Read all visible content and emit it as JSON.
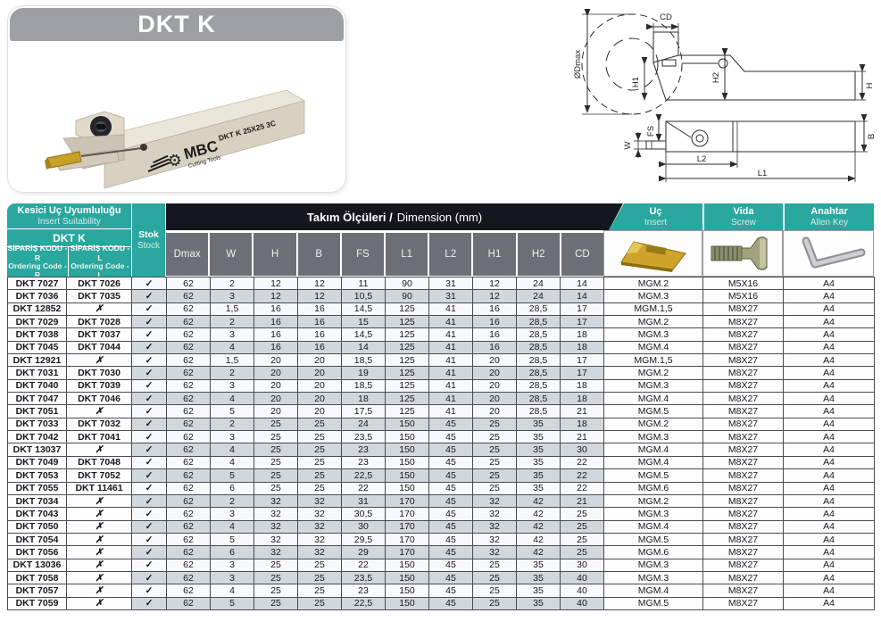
{
  "product_card": {
    "title": "DKT K",
    "brand": "MBC",
    "brand_sub": "Cutting Tools",
    "tool_marking": "DKT K 25X25 3C"
  },
  "diagram": {
    "labels": {
      "dmax": "ØDmax",
      "cd": "CD",
      "h1": "H1",
      "h2": "H2",
      "h": "H",
      "fs": "FS",
      "w": "W",
      "l2": "L2",
      "l1": "L1",
      "b": "B"
    }
  },
  "colors": {
    "teal": "#2aa79e",
    "dark_bar": "#16161e",
    "column_gray": "#6c7076",
    "row_alt": "#d2d7db",
    "banner_gray": "#9da0a3",
    "insert_gold": "#c7a028"
  },
  "table": {
    "suitability_tr": "Kesici Uç Uyumluluğu",
    "suitability_en": "Insert Suitability",
    "series": "DKT K",
    "code_r_tr": "SİPARİŞ KODU - R",
    "code_r_en": "Ordering Code - R",
    "code_l_tr": "SİPARİŞ KODU - L",
    "code_l_en": "Ordering Code - L",
    "stock_tr": "Stok",
    "stock_en": "Stock",
    "dim_title_bold": "Takım Ölçüleri /",
    "dim_title_reg": "Dimension (mm)",
    "dim_columns": [
      "Dmax",
      "W",
      "H",
      "B",
      "FS",
      "L1",
      "L2",
      "H1",
      "H2",
      "CD"
    ],
    "tool_columns": [
      {
        "tr": "Uç",
        "en": "Insert"
      },
      {
        "tr": "Vida",
        "en": "Screw"
      },
      {
        "tr": "Anahtar",
        "en": "Allen Key"
      }
    ],
    "check_symbol": "✓",
    "cross_symbol": "✗",
    "rows": [
      {
        "code_r": "DKT 7027",
        "code_l": "DKT 7026",
        "stock": "✓",
        "dims": [
          "62",
          "2",
          "12",
          "12",
          "11",
          "90",
          "31",
          "12",
          "24",
          "14"
        ],
        "insert": "MGM.2",
        "screw": "M5X16",
        "key": "A4"
      },
      {
        "code_r": "DKT 7036",
        "code_l": "DKT 7035",
        "stock": "✓",
        "dims": [
          "62",
          "3",
          "12",
          "12",
          "10,5",
          "90",
          "31",
          "12",
          "24",
          "14"
        ],
        "insert": "MGM.3",
        "screw": "M5X16",
        "key": "A4"
      },
      {
        "code_r": "DKT 12852",
        "code_l": "✗",
        "stock": "✓",
        "dims": [
          "62",
          "1,5",
          "16",
          "16",
          "14,5",
          "125",
          "41",
          "16",
          "28,5",
          "17"
        ],
        "insert": "MGM.1,5",
        "screw": "M8X27",
        "key": "A4"
      },
      {
        "code_r": "DKT 7029",
        "code_l": "DKT 7028",
        "stock": "✓",
        "dims": [
          "62",
          "2",
          "16",
          "16",
          "15",
          "125",
          "41",
          "16",
          "28,5",
          "17"
        ],
        "insert": "MGM.2",
        "screw": "M8X27",
        "key": "A4"
      },
      {
        "code_r": "DKT 7038",
        "code_l": "DKT 7037",
        "stock": "✓",
        "dims": [
          "62",
          "3",
          "16",
          "16",
          "14,5",
          "125",
          "41",
          "16",
          "28,5",
          "18"
        ],
        "insert": "MGM.3",
        "screw": "M8X27",
        "key": "A4"
      },
      {
        "code_r": "DKT 7045",
        "code_l": "DKT 7044",
        "stock": "✓",
        "dims": [
          "62",
          "4",
          "16",
          "16",
          "14",
          "125",
          "41",
          "16",
          "28,5",
          "18"
        ],
        "insert": "MGM.4",
        "screw": "M8X27",
        "key": "A4"
      },
      {
        "code_r": "DKT 12921",
        "code_l": "✗",
        "stock": "✓",
        "dims": [
          "62",
          "1,5",
          "20",
          "20",
          "18,5",
          "125",
          "41",
          "20",
          "28,5",
          "17"
        ],
        "insert": "MGM.1,5",
        "screw": "M8X27",
        "key": "A4"
      },
      {
        "code_r": "DKT 7031",
        "code_l": "DKT 7030",
        "stock": "✓",
        "dims": [
          "62",
          "2",
          "20",
          "20",
          "19",
          "125",
          "41",
          "20",
          "28,5",
          "17"
        ],
        "insert": "MGM.2",
        "screw": "M8X27",
        "key": "A4"
      },
      {
        "code_r": "DKT 7040",
        "code_l": "DKT 7039",
        "stock": "✓",
        "dims": [
          "62",
          "3",
          "20",
          "20",
          "18,5",
          "125",
          "41",
          "20",
          "28,5",
          "18"
        ],
        "insert": "MGM.3",
        "screw": "M8X27",
        "key": "A4"
      },
      {
        "code_r": "DKT 7047",
        "code_l": "DKT 7046",
        "stock": "✓",
        "dims": [
          "62",
          "4",
          "20",
          "20",
          "18",
          "125",
          "41",
          "20",
          "28,5",
          "18"
        ],
        "insert": "MGM.4",
        "screw": "M8X27",
        "key": "A4"
      },
      {
        "code_r": "DKT 7051",
        "code_l": "✗",
        "stock": "✓",
        "dims": [
          "62",
          "5",
          "20",
          "20",
          "17,5",
          "125",
          "41",
          "20",
          "28,5",
          "21"
        ],
        "insert": "MGM.5",
        "screw": "M8X27",
        "key": "A4"
      },
      {
        "code_r": "DKT 7033",
        "code_l": "DKT 7032",
        "stock": "✓",
        "dims": [
          "62",
          "2",
          "25",
          "25",
          "24",
          "150",
          "45",
          "25",
          "35",
          "18"
        ],
        "insert": "MGM.2",
        "screw": "M8X27",
        "key": "A4"
      },
      {
        "code_r": "DKT 7042",
        "code_l": "DKT 7041",
        "stock": "✓",
        "dims": [
          "62",
          "3",
          "25",
          "25",
          "23,5",
          "150",
          "45",
          "25",
          "35",
          "21"
        ],
        "insert": "MGM.3",
        "screw": "M8X27",
        "key": "A4"
      },
      {
        "code_r": "DKT 13037",
        "code_l": "✗",
        "stock": "✓",
        "dims": [
          "62",
          "4",
          "25",
          "25",
          "23",
          "150",
          "45",
          "25",
          "35",
          "30"
        ],
        "insert": "MGM.4",
        "screw": "M8X27",
        "key": "A4"
      },
      {
        "code_r": "DKT 7049",
        "code_l": "DKT 7048",
        "stock": "✓",
        "dims": [
          "62",
          "4",
          "25",
          "25",
          "23",
          "150",
          "45",
          "25",
          "35",
          "22"
        ],
        "insert": "MGM.4",
        "screw": "M8X27",
        "key": "A4"
      },
      {
        "code_r": "DKT 7053",
        "code_l": "DKT 7052",
        "stock": "✓",
        "dims": [
          "62",
          "5",
          "25",
          "25",
          "22,5",
          "150",
          "45",
          "25",
          "35",
          "22"
        ],
        "insert": "MGM.5",
        "screw": "M8X27",
        "key": "A4"
      },
      {
        "code_r": "DKT 7055",
        "code_l": "DKT 11461",
        "stock": "✓",
        "dims": [
          "62",
          "6",
          "25",
          "25",
          "22",
          "150",
          "45",
          "25",
          "35",
          "22"
        ],
        "insert": "MGM.6",
        "screw": "M8X27",
        "key": "A4"
      },
      {
        "code_r": "DKT 7034",
        "code_l": "✗",
        "stock": "✓",
        "dims": [
          "62",
          "2",
          "32",
          "32",
          "31",
          "170",
          "45",
          "32",
          "42",
          "21"
        ],
        "insert": "MGM.2",
        "screw": "M8X27",
        "key": "A4"
      },
      {
        "code_r": "DKT 7043",
        "code_l": "✗",
        "stock": "✓",
        "dims": [
          "62",
          "3",
          "32",
          "32",
          "30,5",
          "170",
          "45",
          "32",
          "42",
          "25"
        ],
        "insert": "MGM.3",
        "screw": "M8X27",
        "key": "A4"
      },
      {
        "code_r": "DKT 7050",
        "code_l": "✗",
        "stock": "✓",
        "dims": [
          "62",
          "4",
          "32",
          "32",
          "30",
          "170",
          "45",
          "32",
          "42",
          "25"
        ],
        "insert": "MGM.4",
        "screw": "M8X27",
        "key": "A4"
      },
      {
        "code_r": "DKT 7054",
        "code_l": "✗",
        "stock": "✓",
        "dims": [
          "62",
          "5",
          "32",
          "32",
          "29,5",
          "170",
          "45",
          "32",
          "42",
          "25"
        ],
        "insert": "MGM.5",
        "screw": "M8X27",
        "key": "A4"
      },
      {
        "code_r": "DKT 7056",
        "code_l": "✗",
        "stock": "✓",
        "dims": [
          "62",
          "6",
          "32",
          "32",
          "29",
          "170",
          "45",
          "32",
          "42",
          "25"
        ],
        "insert": "MGM.6",
        "screw": "M8X27",
        "key": "A4"
      },
      {
        "code_r": "DKT 13036",
        "code_l": "✗",
        "stock": "✓",
        "dims": [
          "62",
          "3",
          "25",
          "25",
          "22",
          "150",
          "45",
          "25",
          "35",
          "30"
        ],
        "insert": "MGM.3",
        "screw": "M8X27",
        "key": "A4"
      },
      {
        "code_r": "DKT 7058",
        "code_l": "✗",
        "stock": "✓",
        "dims": [
          "62",
          "3",
          "25",
          "25",
          "23,5",
          "150",
          "45",
          "25",
          "35",
          "40"
        ],
        "insert": "MGM.3",
        "screw": "M8X27",
        "key": "A4"
      },
      {
        "code_r": "DKT 7057",
        "code_l": "✗",
        "stock": "✓",
        "dims": [
          "62",
          "4",
          "25",
          "25",
          "23",
          "150",
          "45",
          "25",
          "35",
          "40"
        ],
        "insert": "MGM.4",
        "screw": "M8X27",
        "key": "A4"
      },
      {
        "code_r": "DKT 7059",
        "code_l": "✗",
        "stock": "✓",
        "dims": [
          "62",
          "5",
          "25",
          "25",
          "22,5",
          "150",
          "45",
          "25",
          "35",
          "40"
        ],
        "insert": "MGM.5",
        "screw": "M8X27",
        "key": "A4"
      }
    ]
  }
}
